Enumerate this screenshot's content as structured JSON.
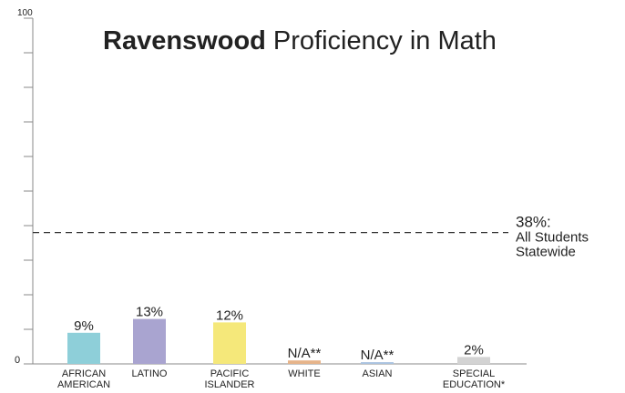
{
  "chart_data": {
    "type": "bar",
    "title_bold": "Ravenswood",
    "title_rest": " Proficiency in Math",
    "y_axis": {
      "min_label": "0",
      "max_label": "100",
      "min": 0,
      "max": 100
    },
    "categories": [
      {
        "label_lines": [
          "AFRICAN",
          "AMERICAN"
        ],
        "value": 9,
        "value_label": "9%",
        "color": "#8ecfd9"
      },
      {
        "label_lines": [
          "LATINO"
        ],
        "value": 13,
        "value_label": "13%",
        "color": "#a9a4d0"
      },
      {
        "label_lines": [
          "PACIFIC",
          "ISLANDER"
        ],
        "value": 12,
        "value_label": "12%",
        "color": "#f5e87a"
      },
      {
        "label_lines": [
          "WHITE"
        ],
        "value": 1,
        "value_label": "N/A**",
        "color": "#e6b48a"
      },
      {
        "label_lines": [
          "ASIAN"
        ],
        "value": 0.5,
        "value_label": "N/A**",
        "color": "#a9c3e0"
      },
      {
        "label_lines": [
          "SPECIAL",
          "EDUCATION*"
        ],
        "value": 2,
        "value_label": "2%",
        "color": "#d3d3d3"
      }
    ],
    "reference_line": {
      "value": 38,
      "value_label": "38%:",
      "label_lines": [
        "All Students",
        "Statewide"
      ]
    }
  }
}
